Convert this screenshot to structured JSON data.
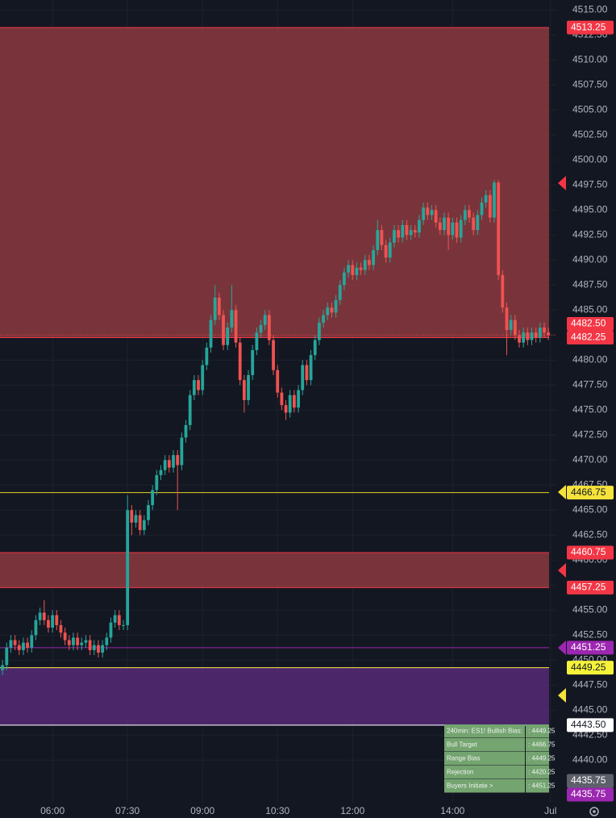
{
  "chart_data": {
    "type": "candlestick",
    "up_color": "#26a69a",
    "down_color": "#ef5350",
    "xlim": [
      -0.6,
      132.9
    ],
    "xticks": [
      {
        "value": 12,
        "label": "06:00"
      },
      {
        "value": 30,
        "label": "07:30"
      },
      {
        "value": 48,
        "label": "09:00"
      },
      {
        "value": 66,
        "label": "10:30"
      },
      {
        "value": 84,
        "label": "12:00"
      },
      {
        "value": 108,
        "label": "14:00"
      },
      {
        "value": 131.5,
        "label": "Jul"
      }
    ],
    "ylim": [
      4435.75,
      4516.0
    ],
    "yticks": [
      {
        "value": 4440,
        "label": "4440.00"
      },
      {
        "value": 4442.5,
        "label": "4442.50"
      },
      {
        "value": 4445,
        "label": "4445.00"
      },
      {
        "value": 4447.5,
        "label": "4447.50"
      },
      {
        "value": 4450,
        "label": "4450.00"
      },
      {
        "value": 4452.5,
        "label": "4452.50"
      },
      {
        "value": 4455,
        "label": "4455.00"
      },
      {
        "value": 4457.5,
        "label": "4457.50"
      },
      {
        "value": 4460,
        "label": "4460.00"
      },
      {
        "value": 4462.5,
        "label": "4462.50"
      },
      {
        "value": 4465,
        "label": "4465.00"
      },
      {
        "value": 4467.5,
        "label": "4467.50"
      },
      {
        "value": 4470,
        "label": "4470.00"
      },
      {
        "value": 4472.5,
        "label": "4472.50"
      },
      {
        "value": 4475,
        "label": "4475.00"
      },
      {
        "value": 4477.5,
        "label": "4477.50"
      },
      {
        "value": 4480,
        "label": "4480.00"
      },
      {
        "value": 4482.5,
        "label": "4482.50"
      },
      {
        "value": 4485,
        "label": "4485.00"
      },
      {
        "value": 4487.5,
        "label": "4487.50"
      },
      {
        "value": 4490,
        "label": "4490.00"
      },
      {
        "value": 4492.5,
        "label": "4492.50"
      },
      {
        "value": 4495,
        "label": "4495.00"
      },
      {
        "value": 4497.5,
        "label": "4497.50"
      },
      {
        "value": 4500,
        "label": "4500.00"
      },
      {
        "value": 4502.5,
        "label": "4502.50"
      },
      {
        "value": 4505,
        "label": "4505.00"
      },
      {
        "value": 4507.5,
        "label": "4507.50"
      },
      {
        "value": 4510,
        "label": "4510.00"
      },
      {
        "value": 4512.5,
        "label": "4512.50"
      },
      {
        "value": 4515,
        "label": "4515.00"
      }
    ],
    "grid": true,
    "open": [
      4449.0,
      4449.5,
      4451.25,
      4452.0,
      4451.5,
      4451.0,
      4451.75,
      4451.25,
      4452.5,
      4454.0,
      4454.75,
      4454.0,
      4453.25,
      4454.5,
      4453.5,
      4452.75,
      4452.0,
      4451.5,
      4452.25,
      4451.5,
      4451.75,
      4452.0,
      4451.0,
      4451.5,
      4450.75,
      4451.5,
      4452.25,
      4453.75,
      4454.5,
      4453.5,
      4453.5,
      4465.0,
      4463.75,
      4464.5,
      4463.0,
      4464.0,
      4465.5,
      4467.0,
      4468.5,
      4469.0,
      4470.0,
      4469.25,
      4470.5,
      4469.5,
      4472.25,
      4473.5,
      4476.5,
      4478.0,
      4477.0,
      4479.5,
      4481.25,
      4484.0,
      4486.25,
      4484.5,
      4481.5,
      4483.25,
      4485.0,
      4481.75,
      4478.0,
      4476.0,
      4478.5,
      4481.0,
      4482.75,
      4483.5,
      4484.5,
      4482.0,
      4479.0,
      4476.75,
      4475.5,
      4474.75,
      4476.5,
      4475.25,
      4477.0,
      4479.5,
      4478.0,
      4480.5,
      4482.0,
      4483.75,
      4484.5,
      4485.25,
      4484.75,
      4486.0,
      4487.5,
      4488.75,
      4489.5,
      4488.5,
      4489.25,
      4489.0,
      4490.0,
      4489.5,
      4491.0,
      4493.0,
      4491.5,
      4490.25,
      4491.75,
      4493.0,
      4492.25,
      4493.5,
      4492.5,
      4493.0,
      4492.75,
      4494.0,
      4495.25,
      4494.5,
      4495.0,
      4493.75,
      4493.0,
      4494.25,
      4492.5,
      4493.75,
      4492.25,
      4494.0,
      4495.0,
      4494.25,
      4493.0,
      4494.5,
      4495.75,
      4496.5,
      4494.25,
      4497.75,
      4488.5,
      4485.25,
      4483.0,
      4484.0,
      4482.5,
      4481.75,
      4482.75,
      4482.0,
      4482.75,
      4482.25,
      4483.25,
      4482.75
    ],
    "high": [
      4450.0,
      4451.75,
      4452.5,
      4452.5,
      4452.0,
      4452.25,
      4452.25,
      4453.0,
      4454.5,
      4455.25,
      4456.0,
      4454.5,
      4455.0,
      4455.0,
      4454.0,
      4453.25,
      4452.5,
      4452.75,
      4452.75,
      4452.25,
      4452.5,
      4452.5,
      4452.0,
      4452.0,
      4452.0,
      4452.75,
      4454.25,
      4455.0,
      4455.0,
      4454.0,
      4466.5,
      4465.5,
      4465.0,
      4465.0,
      4464.5,
      4466.0,
      4467.5,
      4469.0,
      4469.5,
      4470.5,
      4470.5,
      4471.0,
      4471.0,
      4472.75,
      4474.0,
      4477.0,
      4478.5,
      4478.5,
      4480.0,
      4481.75,
      4484.5,
      4487.5,
      4486.75,
      4485.0,
      4483.75,
      4487.5,
      4485.5,
      4482.25,
      4478.5,
      4479.0,
      4481.5,
      4483.25,
      4484.0,
      4485.0,
      4485.0,
      4482.5,
      4479.5,
      4477.25,
      4476.0,
      4477.0,
      4477.0,
      4477.5,
      4480.0,
      4480.0,
      4481.0,
      4482.5,
      4484.25,
      4485.0,
      4485.75,
      4485.75,
      4486.5,
      4488.0,
      4489.25,
      4490.0,
      4490.0,
      4489.75,
      4489.75,
      4490.5,
      4490.5,
      4491.5,
      4494.0,
      4493.5,
      4492.0,
      4492.25,
      4493.5,
      4493.5,
      4494.0,
      4494.0,
      4493.5,
      4493.5,
      4494.5,
      4495.75,
      4495.75,
      4495.5,
      4495.5,
      4494.25,
      4494.75,
      4494.75,
      4494.25,
      4494.25,
      4494.5,
      4495.5,
      4495.5,
      4494.75,
      4495.0,
      4496.25,
      4497.0,
      4497.0,
      4498.0,
      4498.0,
      4489.0,
      4485.75,
      4484.5,
      4484.5,
      4483.0,
      4483.25,
      4483.25,
      4483.25,
      4483.25,
      4483.75,
      4483.75,
      4483.25
    ],
    "low": [
      4448.5,
      4449.0,
      4450.75,
      4451.0,
      4450.5,
      4450.5,
      4450.75,
      4450.75,
      4452.0,
      4453.5,
      4453.5,
      4452.75,
      4452.75,
      4453.0,
      4452.25,
      4451.5,
      4451.0,
      4451.0,
      4451.0,
      4451.0,
      4451.25,
      4450.5,
      4450.5,
      4450.25,
      4450.25,
      4451.0,
      4451.75,
      4453.25,
      4453.0,
      4453.0,
      4453.0,
      4462.5,
      4463.25,
      4462.5,
      4462.5,
      4463.5,
      4465.0,
      4466.5,
      4468.0,
      4468.5,
      4468.75,
      4468.75,
      4465.0,
      4469.0,
      4471.75,
      4473.0,
      4476.0,
      4476.5,
      4476.5,
      4479.0,
      4480.75,
      4483.5,
      4484.0,
      4481.0,
      4481.0,
      4482.75,
      4481.25,
      4477.5,
      4474.75,
      4475.5,
      4478.0,
      4480.5,
      4482.25,
      4483.0,
      4481.5,
      4478.5,
      4476.25,
      4475.0,
      4474.0,
      4474.25,
      4474.75,
      4474.75,
      4476.5,
      4477.5,
      4477.5,
      4480.0,
      4481.5,
      4483.25,
      4484.0,
      4484.25,
      4484.25,
      4485.5,
      4487.0,
      4488.25,
      4488.0,
      4488.0,
      4488.5,
      4488.5,
      4489.0,
      4489.0,
      4490.5,
      4491.0,
      4489.75,
      4489.75,
      4491.25,
      4491.75,
      4491.75,
      4492.0,
      4492.0,
      4492.25,
      4492.25,
      4493.5,
      4494.0,
      4494.0,
      4493.25,
      4492.5,
      4492.5,
      4491.0,
      4492.0,
      4491.75,
      4491.75,
      4493.5,
      4493.75,
      4492.5,
      4492.5,
      4494.0,
      4495.25,
      4493.75,
      4493.75,
      4488.0,
      4484.75,
      4480.5,
      4482.5,
      4482.0,
      4481.25,
      4481.25,
      4481.5,
      4481.5,
      4481.75,
      4481.75,
      4482.25,
      4482.0
    ],
    "close": [
      4449.5,
      4451.25,
      4452.0,
      4451.5,
      4451.0,
      4451.75,
      4451.25,
      4452.5,
      4454.0,
      4454.75,
      4454.0,
      4453.25,
      4454.5,
      4453.5,
      4452.75,
      4452.0,
      4451.5,
      4452.25,
      4451.5,
      4451.75,
      4452.0,
      4451.0,
      4451.5,
      4450.75,
      4451.5,
      4452.25,
      4453.75,
      4454.5,
      4453.5,
      4453.5,
      4465.0,
      4463.75,
      4464.5,
      4463.0,
      4464.0,
      4465.5,
      4467.0,
      4468.5,
      4469.0,
      4470.0,
      4469.25,
      4470.5,
      4469.5,
      4472.25,
      4473.5,
      4476.5,
      4478.0,
      4477.0,
      4479.5,
      4481.25,
      4484.0,
      4486.25,
      4484.5,
      4481.5,
      4483.25,
      4485.0,
      4481.75,
      4478.0,
      4476.0,
      4478.5,
      4481.0,
      4482.75,
      4483.5,
      4484.5,
      4482.0,
      4479.0,
      4476.75,
      4475.5,
      4474.75,
      4476.5,
      4475.25,
      4477.0,
      4479.5,
      4478.0,
      4480.5,
      4482.0,
      4483.75,
      4484.5,
      4485.25,
      4484.75,
      4486.0,
      4487.5,
      4488.75,
      4489.5,
      4488.5,
      4489.25,
      4489.0,
      4490.0,
      4489.5,
      4491.0,
      4493.0,
      4491.5,
      4490.25,
      4491.75,
      4493.0,
      4492.25,
      4493.5,
      4492.5,
      4493.0,
      4492.75,
      4494.0,
      4495.25,
      4494.5,
      4495.0,
      4493.75,
      4493.0,
      4494.25,
      4492.5,
      4493.75,
      4492.25,
      4494.0,
      4495.0,
      4494.25,
      4493.0,
      4494.5,
      4495.75,
      4496.5,
      4494.25,
      4497.75,
      4488.5,
      4485.25,
      4483.0,
      4484.0,
      4482.5,
      4481.75,
      4482.75,
      4482.0,
      4482.75,
      4482.25,
      4483.25,
      4482.75,
      4482.5
    ],
    "zones": [
      {
        "top": 4513.25,
        "bottom": 4482.25,
        "color": "#8c3a3f",
        "border": "#f23645"
      },
      {
        "top": 4460.75,
        "bottom": 4457.25,
        "color": "#8c3a3f",
        "border": "#f23645"
      },
      {
        "top": 4449.25,
        "bottom": 4443.5,
        "color": "#562a77",
        "border": "#7b3fa6"
      }
    ],
    "lines": [
      {
        "value": 4482.5,
        "color": "#f23645",
        "style": "dotted"
      },
      {
        "value": 4466.75,
        "color": "#e6d52a",
        "style": "solid"
      },
      {
        "value": 4451.25,
        "color": "#9c27b0",
        "style": "solid"
      },
      {
        "value": 4449.25,
        "color": "#f5e23a",
        "style": "solid"
      },
      {
        "value": 4443.5,
        "color": "#ffffff",
        "style": "solid"
      }
    ],
    "price_labels": [
      {
        "value": 4513.25,
        "label": "4513.25",
        "color": "#f23645",
        "text_color": "#ffffff"
      },
      {
        "value": 4482.5,
        "label": "4482.50",
        "color": "#f23645",
        "text_color": "#ffffff"
      },
      {
        "value": 4482.25,
        "label": "4482.25",
        "color": "#f23645",
        "text_color": "#ffffff"
      },
      {
        "value": 4466.75,
        "label": "4466.75",
        "color": "#f5e23a",
        "text_color": "#131722"
      },
      {
        "value": 4460.75,
        "label": "4460.75",
        "color": "#f23645",
        "text_color": "#ffffff"
      },
      {
        "value": 4457.25,
        "label": "4457.25",
        "color": "#f23645",
        "text_color": "#ffffff"
      },
      {
        "value": 4451.25,
        "label": "4451.25",
        "color": "#9c27b0",
        "text_color": "#ffffff"
      },
      {
        "value": 4449.25,
        "label": "4449.25",
        "color": "#f5f23a",
        "text_color": "#131722"
      },
      {
        "value": 4443.5,
        "label": "4443.50",
        "color": "#ffffff",
        "text_color": "#131722"
      },
      {
        "value": 4435.75,
        "label": "4435.75",
        "color": "#5d606b",
        "text_color": "#ffffff"
      },
      {
        "value": 4435.75,
        "label": "4435.75",
        "color": "#9c27b0",
        "text_color": "#ffffff"
      }
    ]
  },
  "table": {
    "rows": [
      [
        "240min: ES1! Bullish Bias:",
        ": 4449.25"
      ],
      [
        "Bull Target",
        ": 4466.75"
      ],
      [
        "Range Bias",
        ": 4449.25"
      ],
      [
        "Rejection",
        ": 4420.25"
      ],
      [
        "Buyers Initiate >",
        ": 4451.25"
      ]
    ]
  }
}
